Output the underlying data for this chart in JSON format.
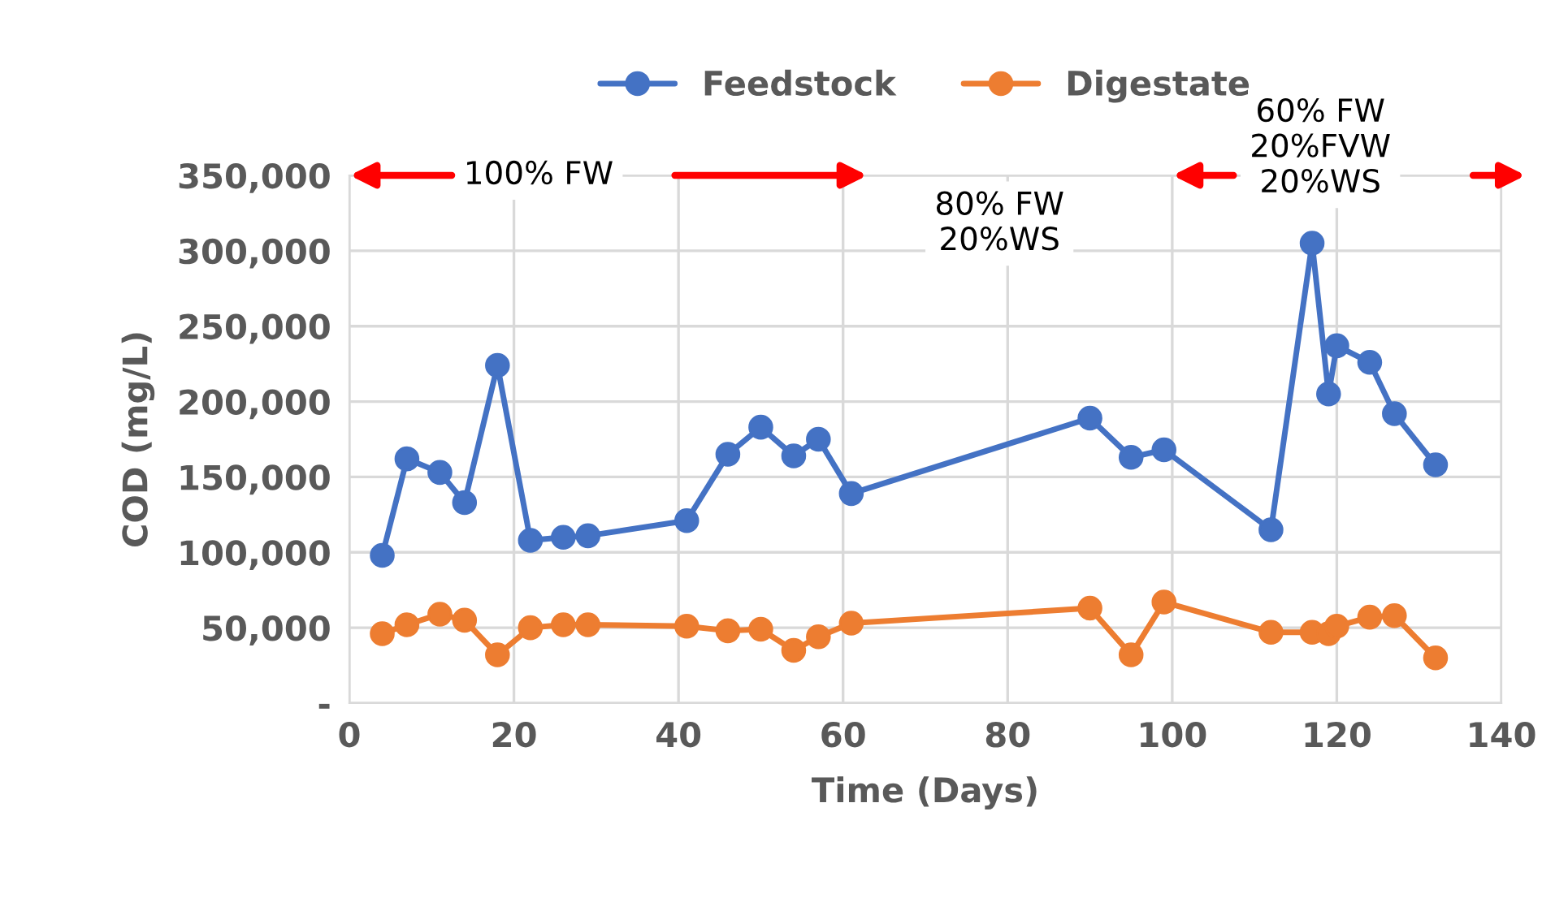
{
  "chart_data": {
    "type": "line",
    "xlabel": "Time (Days)",
    "ylabel": "COD (mg/L)",
    "xlim": [
      0,
      140
    ],
    "xticks": [
      0,
      20,
      40,
      60,
      80,
      100,
      120,
      140
    ],
    "ylim": [
      0,
      350000
    ],
    "yticks": [
      {
        "value": 0,
        "label": "-"
      },
      {
        "value": 50000,
        "label": "50,000"
      },
      {
        "value": 100000,
        "label": "100,000"
      },
      {
        "value": 150000,
        "label": "150,000"
      },
      {
        "value": 200000,
        "label": "200,000"
      },
      {
        "value": 250000,
        "label": "250,000"
      },
      {
        "value": 300000,
        "label": "300,000"
      },
      {
        "value": 350000,
        "label": "350,000"
      }
    ],
    "grid": true,
    "legend": "top",
    "marker": "circle",
    "line_style": "solid",
    "annotations": [
      "100% FW",
      "80% FW\n20%WS",
      "60% FW\n20%FVW\n20%WS"
    ],
    "series": [
      {
        "name": "Feedstock",
        "color": "#4472c4",
        "x": [
          4,
          7,
          11,
          14,
          18,
          22,
          26,
          29,
          41,
          46,
          50,
          54,
          57,
          61,
          90,
          95,
          99,
          112,
          117,
          119,
          120,
          124,
          127,
          132
        ],
        "values": [
          98000,
          162000,
          153000,
          133000,
          224000,
          108000,
          110000,
          111000,
          121000,
          165000,
          183000,
          164000,
          175000,
          139000,
          189000,
          163000,
          168000,
          115000,
          305000,
          205000,
          237000,
          226000,
          192000,
          158000
        ]
      },
      {
        "name": "Digestate",
        "color": "#ed7d31",
        "x": [
          4,
          7,
          11,
          14,
          18,
          22,
          26,
          29,
          41,
          46,
          50,
          54,
          57,
          61,
          90,
          95,
          99,
          112,
          117,
          119,
          120,
          124,
          127,
          132
        ],
        "values": [
          46000,
          52000,
          59000,
          55000,
          32000,
          50000,
          52000,
          52000,
          51000,
          48000,
          49000,
          35000,
          44000,
          53000,
          63000,
          32000,
          67000,
          47000,
          47000,
          46000,
          51000,
          57000,
          58000,
          30000
        ]
      }
    ]
  }
}
